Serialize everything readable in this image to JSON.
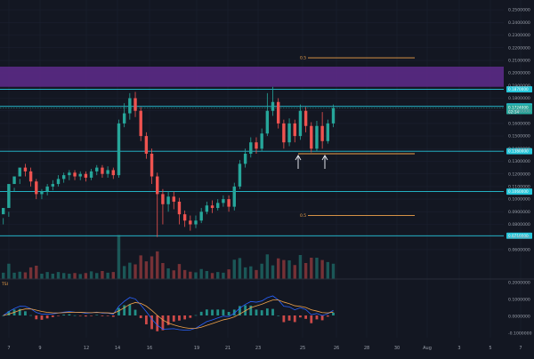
{
  "chart_data": {
    "type": "candlestick",
    "price_axis": {
      "ticks": [
        "0.2500000",
        "0.2400000",
        "0.2300000",
        "0.2200000",
        "0.2100000",
        "0.2000000",
        "0.1900000",
        "0.1800000",
        "0.1700000",
        "0.1600000",
        "0.1500000",
        "0.1400000",
        "0.1300000",
        "0.1200000",
        "0.1100000",
        "0.1000000",
        "0.0900000",
        "0.0800000",
        "0.0700000",
        "0.0600000"
      ],
      "range": [
        0.055,
        0.255
      ]
    },
    "date_axis": {
      "ticks": [
        "7",
        "9",
        "12",
        "14",
        "16",
        "19",
        "21",
        "23",
        "25",
        "26",
        "28",
        "30",
        "Aug",
        "3",
        "5",
        "7"
      ]
    },
    "horizontal_levels": [
      {
        "value": 0.187,
        "tag": "0.1870000",
        "color": "#26c6da"
      },
      {
        "value": 0.1735,
        "tag": "0.1735000",
        "color": "#26c6da"
      },
      {
        "value": 0.138,
        "tag": "0.1380000",
        "color": "#26c6da"
      },
      {
        "value": 0.106,
        "tag": "0.1060000",
        "color": "#26c6da"
      },
      {
        "value": 0.071,
        "tag": "0.0710000",
        "color": "#26c6da"
      }
    ],
    "last_price_tag": {
      "value": "0.1724000",
      "countdown": "02:14"
    },
    "resistance_zone": {
      "from": 0.189,
      "to": 0.205,
      "color": "#5b2a86"
    },
    "fib_lines": [
      {
        "label": "0.5",
        "value": 0.212
      },
      {
        "label": "0.5",
        "value": 0.087
      }
    ],
    "support_line": 0.136,
    "arrows": [
      "up-arrow",
      "up-arrow"
    ],
    "candles": [
      [
        0.088,
        0.093,
        0.085,
        0.08
      ],
      [
        0.093,
        0.112,
        0.09,
        0.086
      ],
      [
        0.112,
        0.118,
        0.109,
        0.106
      ],
      [
        0.118,
        0.125,
        0.116,
        0.112
      ],
      [
        0.125,
        0.122,
        0.128,
        0.118
      ],
      [
        0.122,
        0.114,
        0.125,
        0.11
      ],
      [
        0.114,
        0.104,
        0.116,
        0.1
      ],
      [
        0.104,
        0.106,
        0.108,
        0.1
      ],
      [
        0.106,
        0.11,
        0.112,
        0.103
      ],
      [
        0.11,
        0.112,
        0.115,
        0.107
      ],
      [
        0.112,
        0.116,
        0.119,
        0.11
      ],
      [
        0.116,
        0.119,
        0.121,
        0.113
      ],
      [
        0.119,
        0.121,
        0.123,
        0.115
      ],
      [
        0.121,
        0.118,
        0.123,
        0.115
      ],
      [
        0.118,
        0.12,
        0.122,
        0.115
      ],
      [
        0.12,
        0.117,
        0.122,
        0.114
      ],
      [
        0.117,
        0.122,
        0.124,
        0.115
      ],
      [
        0.122,
        0.125,
        0.127,
        0.119
      ],
      [
        0.125,
        0.12,
        0.127,
        0.117
      ],
      [
        0.12,
        0.123,
        0.126,
        0.117
      ],
      [
        0.123,
        0.119,
        0.125,
        0.116
      ],
      [
        0.119,
        0.16,
        0.163,
        0.117
      ],
      [
        0.16,
        0.168,
        0.176,
        0.157
      ],
      [
        0.168,
        0.18,
        0.184,
        0.163
      ],
      [
        0.18,
        0.17,
        0.185,
        0.165
      ],
      [
        0.17,
        0.15,
        0.173,
        0.146
      ],
      [
        0.15,
        0.136,
        0.153,
        0.132
      ],
      [
        0.136,
        0.118,
        0.14,
        0.112
      ],
      [
        0.118,
        0.104,
        0.121,
        0.07
      ],
      [
        0.104,
        0.096,
        0.108,
        0.08
      ],
      [
        0.096,
        0.102,
        0.106,
        0.09
      ],
      [
        0.102,
        0.098,
        0.106,
        0.092
      ],
      [
        0.098,
        0.088,
        0.101,
        0.08
      ],
      [
        0.088,
        0.083,
        0.091,
        0.078
      ],
      [
        0.083,
        0.08,
        0.087,
        0.075
      ],
      [
        0.08,
        0.083,
        0.087,
        0.077
      ],
      [
        0.083,
        0.09,
        0.093,
        0.081
      ],
      [
        0.09,
        0.095,
        0.098,
        0.088
      ],
      [
        0.095,
        0.093,
        0.099,
        0.089
      ],
      [
        0.093,
        0.097,
        0.1,
        0.091
      ],
      [
        0.097,
        0.1,
        0.103,
        0.094
      ],
      [
        0.1,
        0.094,
        0.103,
        0.09
      ],
      [
        0.094,
        0.11,
        0.113,
        0.091
      ],
      [
        0.11,
        0.128,
        0.131,
        0.108
      ],
      [
        0.128,
        0.136,
        0.14,
        0.125
      ],
      [
        0.136,
        0.145,
        0.149,
        0.133
      ],
      [
        0.145,
        0.14,
        0.149,
        0.136
      ],
      [
        0.14,
        0.152,
        0.156,
        0.138
      ],
      [
        0.152,
        0.17,
        0.184,
        0.15
      ],
      [
        0.17,
        0.177,
        0.189,
        0.166
      ],
      [
        0.177,
        0.16,
        0.18,
        0.156
      ],
      [
        0.16,
        0.145,
        0.163,
        0.14
      ],
      [
        0.145,
        0.16,
        0.164,
        0.142
      ],
      [
        0.16,
        0.15,
        0.163,
        0.145
      ],
      [
        0.15,
        0.17,
        0.175,
        0.147
      ],
      [
        0.17,
        0.158,
        0.173,
        0.153
      ],
      [
        0.158,
        0.14,
        0.161,
        0.137
      ],
      [
        0.14,
        0.158,
        0.162,
        0.138
      ],
      [
        0.158,
        0.146,
        0.169,
        0.14
      ],
      [
        0.146,
        0.16,
        0.163,
        0.144
      ],
      [
        0.16,
        0.172,
        0.175,
        0.157
      ]
    ],
    "volume_axis": {
      "ticks": [
        "0.2000000",
        "0.1000000",
        "0.0000000",
        "-0.1000000"
      ]
    },
    "indicator_label": "TSI"
  },
  "colors": {
    "bg": "#131722",
    "up": "#26a69a",
    "down": "#ef5350",
    "level": "#26c6da",
    "zone": "#5b2a86",
    "fib": "#f0a34b"
  }
}
